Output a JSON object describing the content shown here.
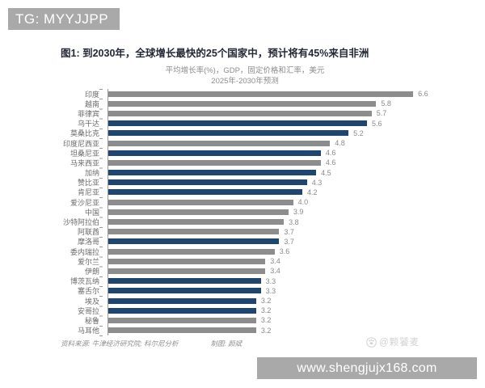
{
  "banners": {
    "top_left": "TG: MYYJJPP",
    "bottom_right": "www.shengjujx168.com",
    "bg_color": "#a9a9a9"
  },
  "chart_data": {
    "type": "bar",
    "orientation": "horizontal",
    "title": "图1: 到2030年，全球增长最快的25个国家中，预计将有45%来自非洲",
    "subtitle1": "平均增长率(%)，GDP，固定价格和汇率，美元",
    "subtitle2": "2025年-2030年预测",
    "xlim": [
      0,
      7
    ],
    "grid": false,
    "value_labels": "end_of_bar_one_decimal",
    "colors": {
      "africa": "#1e4670",
      "other": "#8d8d8d"
    },
    "series": [
      {
        "label": "印度",
        "value": 6.6,
        "region": "other"
      },
      {
        "label": "越南",
        "value": 5.8,
        "region": "other"
      },
      {
        "label": "菲律宾",
        "value": 5.7,
        "region": "other"
      },
      {
        "label": "乌干达",
        "value": 5.6,
        "region": "africa"
      },
      {
        "label": "莫桑比克",
        "value": 5.2,
        "region": "africa"
      },
      {
        "label": "印度尼西亚",
        "value": 4.8,
        "region": "other"
      },
      {
        "label": "坦桑尼亚",
        "value": 4.6,
        "region": "africa"
      },
      {
        "label": "马来西亚",
        "value": 4.6,
        "region": "other"
      },
      {
        "label": "加纳",
        "value": 4.5,
        "region": "africa"
      },
      {
        "label": "赞比亚",
        "value": 4.3,
        "region": "africa"
      },
      {
        "label": "肯尼亚",
        "value": 4.2,
        "region": "africa"
      },
      {
        "label": "爱沙尼亚",
        "value": 4.0,
        "region": "other"
      },
      {
        "label": "中国",
        "value": 3.9,
        "region": "other"
      },
      {
        "label": "沙特阿拉伯",
        "value": 3.8,
        "region": "other"
      },
      {
        "label": "阿联酋",
        "value": 3.7,
        "region": "other"
      },
      {
        "label": "摩洛哥",
        "value": 3.7,
        "region": "africa"
      },
      {
        "label": "委内瑞拉",
        "value": 3.6,
        "region": "other"
      },
      {
        "label": "爱尔兰",
        "value": 3.4,
        "region": "other"
      },
      {
        "label": "伊朗",
        "value": 3.4,
        "region": "other"
      },
      {
        "label": "博茨瓦纳",
        "value": 3.3,
        "region": "africa"
      },
      {
        "label": "塞舌尔",
        "value": 3.3,
        "region": "africa"
      },
      {
        "label": "埃及",
        "value": 3.2,
        "region": "africa"
      },
      {
        "label": "安哥拉",
        "value": 3.2,
        "region": "africa"
      },
      {
        "label": "秘鲁",
        "value": 3.2,
        "region": "other"
      },
      {
        "label": "马耳他",
        "value": 3.2,
        "region": "other"
      }
    ]
  },
  "footer": {
    "source": "资料来源: 牛津经济研究院; 科尔尼分析",
    "credit": "制图: 颜斌"
  },
  "watermark": {
    "text": "@颗饕麦"
  }
}
